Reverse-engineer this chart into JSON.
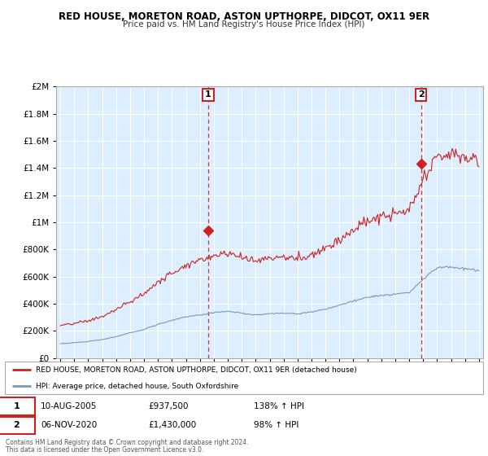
{
  "title": "RED HOUSE, MORETON ROAD, ASTON UPTHORPE, DIDCOT, OX11 9ER",
  "subtitle": "Price paid vs. HM Land Registry's House Price Index (HPI)",
  "legend_line1": "RED HOUSE, MORETON ROAD, ASTON UPTHORPE, DIDCOT, OX11 9ER (detached house)",
  "legend_line2": "HPI: Average price, detached house, South Oxfordshire",
  "footnote1": "Contains HM Land Registry data © Crown copyright and database right 2024.",
  "footnote2": "This data is licensed under the Open Government Licence v3.0.",
  "sale1_date": "10-AUG-2005",
  "sale1_price": "£937,500",
  "sale1_hpi": "138% ↑ HPI",
  "sale2_date": "06-NOV-2020",
  "sale2_price": "£1,430,000",
  "sale2_hpi": "98% ↑ HPI",
  "red_color": "#cc2222",
  "blue_color": "#7799bb",
  "bg_color": "#ffffff",
  "plot_bg_color": "#ddeeff",
  "grid_color": "#ffffff",
  "sale1_x": 2005.6,
  "sale1_y": 937500,
  "sale2_x": 2020.85,
  "sale2_y": 1430000,
  "ylim_max": 2000000,
  "ylim_min": 0,
  "yticks": [
    0,
    200000,
    400000,
    600000,
    800000,
    1000000,
    1200000,
    1400000,
    1600000,
    1800000,
    2000000
  ],
  "xlim_min": 1994.7,
  "xlim_max": 2025.3
}
